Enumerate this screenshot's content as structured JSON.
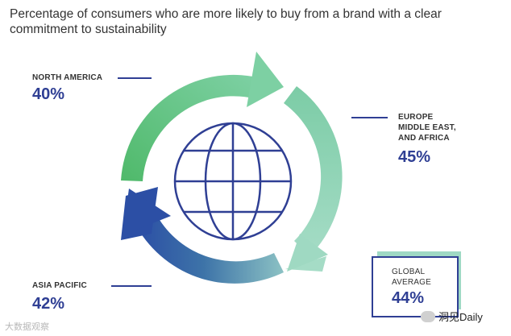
{
  "title": "Percentage of consumers who are more likely to buy from a brand with a clear\ncommitment to sustainability",
  "regions": {
    "north_america": {
      "name": "NORTH AMERICA",
      "value": "40%"
    },
    "emea": {
      "name": "EUROPE\nMIDDLE EAST,\nAND AFRICA",
      "value": "45%"
    },
    "asia_pacific": {
      "name": "ASIA PACIFIC",
      "value": "42%"
    }
  },
  "global": {
    "label": "GLOBAL\nAVERAGE",
    "value": "44%"
  },
  "watermarks": {
    "left": "大数据观察",
    "right": "洞见Daily"
  },
  "colors": {
    "arrow_green": "#5cbf72",
    "arrow_mint": "#8fd3b8",
    "arrow_blue": "#2e58a8",
    "accent": "#2f3f94"
  }
}
